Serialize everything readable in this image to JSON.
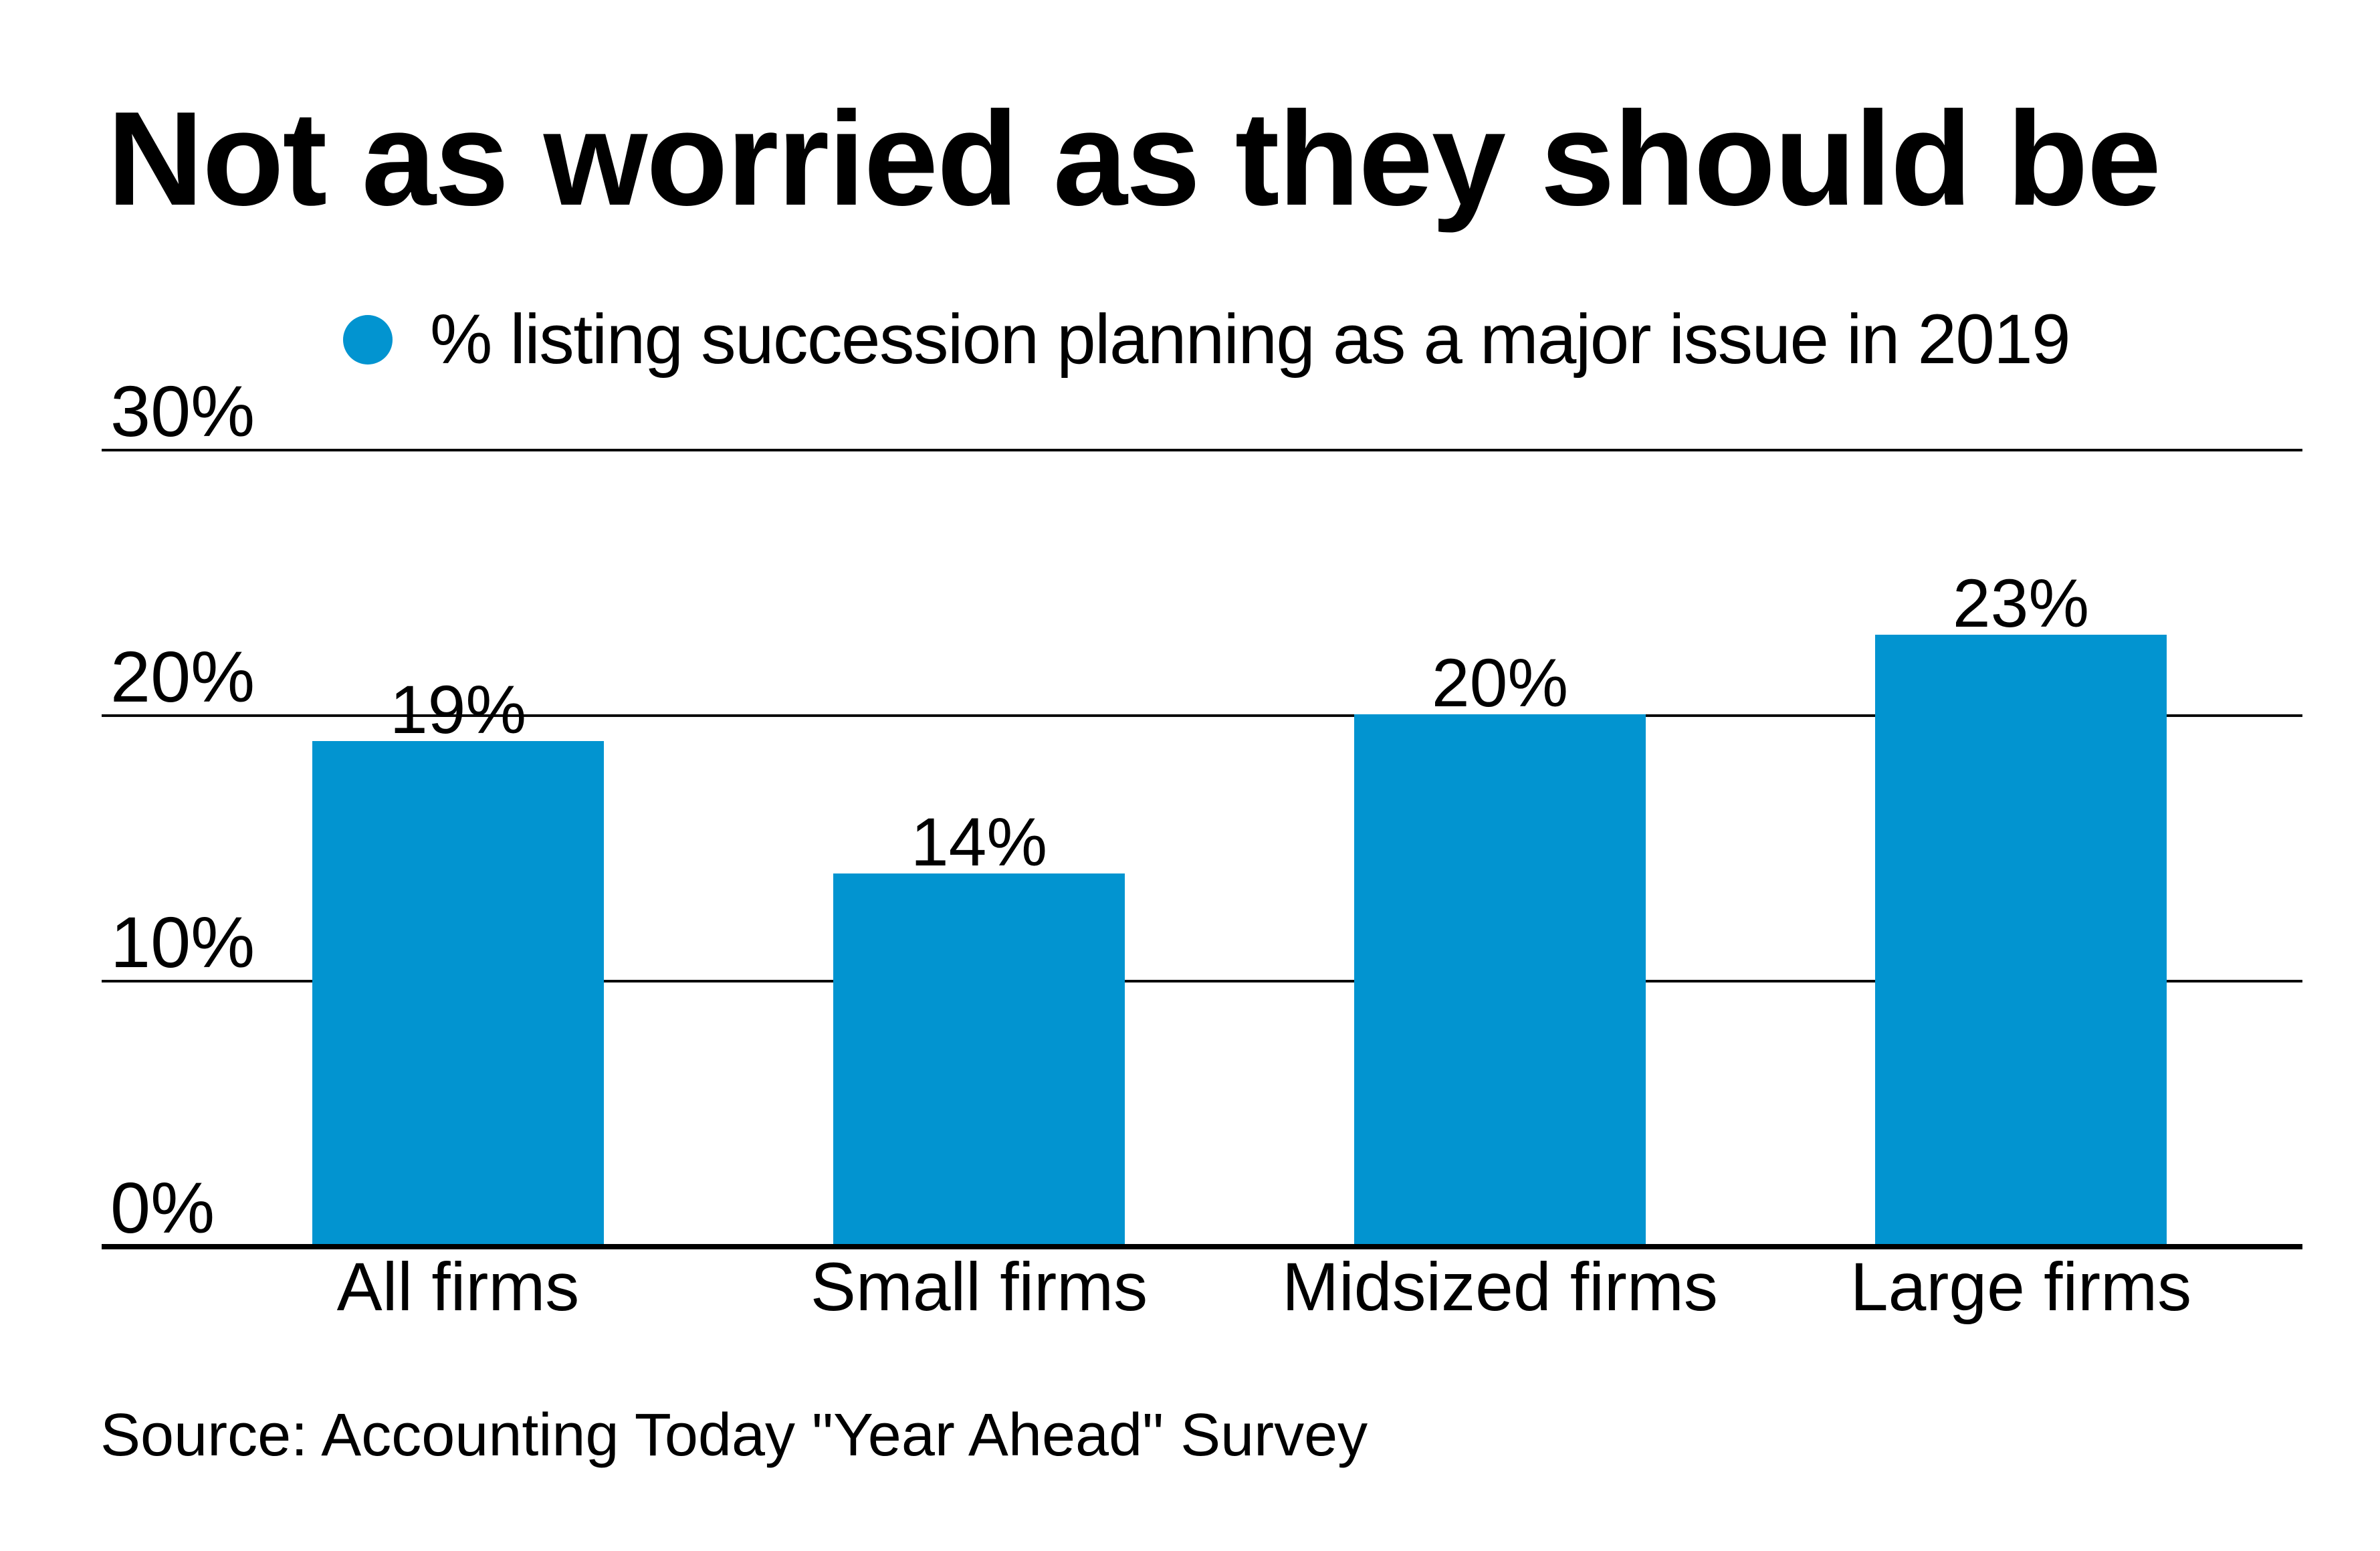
{
  "page": {
    "background_color": "#ffffff",
    "text_color": "#000000"
  },
  "chart_data": {
    "type": "bar",
    "title": "Not as worried as they should be",
    "legend": "% listing succession planning as a major issue in 2019",
    "legend_position": "top",
    "categories": [
      "All firms",
      "Small firms",
      "Midsized firms",
      "Large firms"
    ],
    "values": [
      19,
      14,
      20,
      23
    ],
    "value_labels": [
      "19%",
      "14%",
      "20%",
      "23%"
    ],
    "yticks": [
      0,
      10,
      20,
      30
    ],
    "ytick_labels": [
      "0%",
      "10%",
      "20%",
      "30%"
    ],
    "ylim": [
      0,
      30
    ],
    "grid": true,
    "bar_color": "#0294d0",
    "marker_color": "#0294d0",
    "line_color": "#000000",
    "source": "Source: Accounting Today \"Year Ahead\" Survey"
  }
}
